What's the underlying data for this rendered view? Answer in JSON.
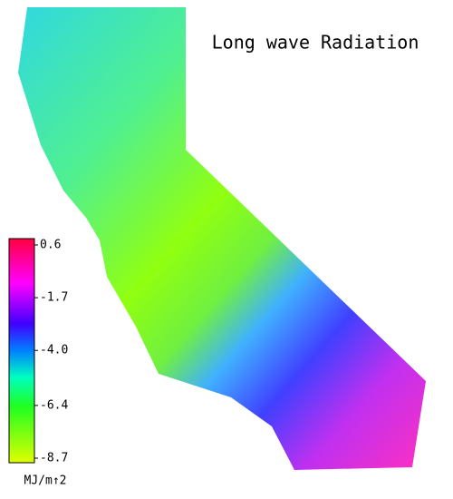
{
  "title": "Long wave Radiation",
  "colorbar": {
    "ticks": [
      0.6,
      -1.7,
      {
        "value": -4,
        "label": "-4.0"
      },
      -6.4,
      -8.7
    ],
    "unit": "MJ/m↑2"
  }
}
